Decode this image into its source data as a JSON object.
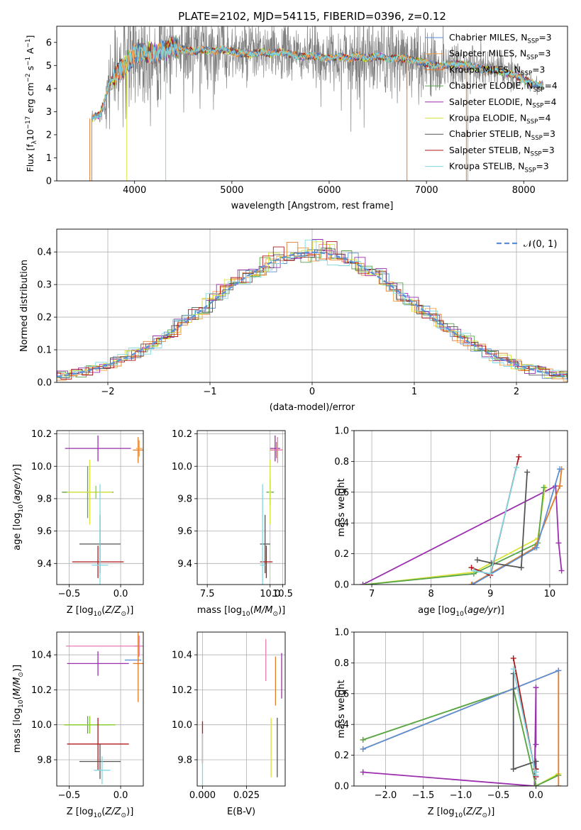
{
  "colors": {
    "Chabrier MILES": "#5b8fd6",
    "Salpeter MILES": "#f4a04a",
    "Kroupa MILES": "#e07b2a",
    "Chabrier ELODIE": "#56a44a",
    "Salpeter ELODIE": "#9b2fae",
    "Kroupa ELODIE": "#d9e33a",
    "Chabrier STELIB": "#555555",
    "Salpeter STELIB": "#b01818",
    "Kroupa STELIB": "#7fd8e3",
    "pink": "#e87ab0",
    "lime": "#8bd12b",
    "grid": "#b0b0b0",
    "data_grey": "#808080",
    "normal": "#5b8fd6"
  },
  "chart_data": [
    {
      "id": "spectrum",
      "type": "line",
      "title": "PLATE=2102, MJD=54115, FIBERID=0396, z=0.12",
      "xlabel": "wavelength [Angstrom, rest frame]",
      "ylabel": "Flux [f_λ 10^-17 erg cm^-2 s^-1 A^-1]",
      "xlim": [
        3200,
        8450
      ],
      "ylim": [
        0,
        6.7
      ],
      "xticks": [
        "4000",
        "5000",
        "6000",
        "7000",
        "8000"
      ],
      "yticks": [
        "0",
        "1",
        "2",
        "3",
        "4",
        "5",
        "6"
      ],
      "grid": false,
      "legend_position": "right",
      "legend": [
        {
          "base": "Chabrier MILES, N",
          "sub": "SSP",
          "suffix": "=3",
          "color_key": "Chabrier MILES"
        },
        {
          "base": "Salpeter MILES, N",
          "sub": "SSP",
          "suffix": "=3",
          "color_key": "Salpeter MILES"
        },
        {
          "base": "Kroupa MILES, N",
          "sub": "SSP",
          "suffix": "=3",
          "color_key": "Kroupa MILES"
        },
        {
          "base": "Chabrier ELODIE, N",
          "sub": "SSP",
          "suffix": "=4",
          "color_key": "Chabrier ELODIE"
        },
        {
          "base": "Salpeter ELODIE, N",
          "sub": "SSP",
          "suffix": "=4",
          "color_key": "Salpeter ELODIE"
        },
        {
          "base": "Kroupa ELODIE, N",
          "sub": "SSP",
          "suffix": "=4",
          "color_key": "Kroupa ELODIE"
        },
        {
          "base": "Chabrier STELIB, N",
          "sub": "SSP",
          "suffix": "=3",
          "color_key": "Chabrier STELIB"
        },
        {
          "base": "Salpeter STELIB, N",
          "sub": "SSP",
          "suffix": "=3",
          "color_key": "Salpeter STELIB"
        },
        {
          "base": "Kroupa STELIB, N",
          "sub": "SSP",
          "suffix": "=3",
          "color_key": "Kroupa STELIB"
        }
      ],
      "data_envelope": {
        "x": [
          3550,
          3600,
          3650,
          3700,
          3750,
          3800,
          3850,
          3900,
          3950,
          4000,
          4100,
          4200,
          4300,
          4400,
          4500,
          4600,
          4700,
          4800,
          4900,
          5000,
          5100,
          5200,
          5300,
          5400,
          5500,
          5600,
          5700,
          5800,
          5900,
          6000,
          6100,
          6200,
          6300,
          6400,
          6500,
          6600,
          6700,
          6800,
          6900,
          7000,
          7100,
          7200,
          7300,
          7400,
          7500,
          7600,
          7700,
          7800,
          7900,
          8000,
          8100,
          8200
        ],
        "y": [
          2.7,
          2.8,
          2.9,
          3.6,
          4.3,
          4.6,
          4.8,
          5.0,
          5.2,
          5.5,
          5.6,
          5.5,
          5.6,
          5.8,
          5.7,
          5.6,
          5.7,
          5.6,
          5.7,
          5.6,
          5.5,
          5.5,
          5.6,
          5.5,
          5.6,
          5.5,
          5.4,
          5.4,
          5.4,
          5.3,
          5.4,
          5.3,
          5.4,
          5.3,
          5.4,
          5.3,
          5.3,
          5.3,
          5.2,
          5.1,
          5.0,
          5.0,
          5.1,
          5.0,
          4.9,
          4.8,
          4.8,
          4.7,
          4.6,
          4.4,
          4.2,
          4.1
        ],
        "noise": [
          0.2,
          0.2,
          0.3,
          0.9,
          1.5,
          2.2,
          2.4,
          2.6,
          2.7,
          2.4,
          2.2,
          2.0,
          1.8,
          1.6,
          1.6,
          1.7,
          1.6,
          1.5,
          1.4,
          1.1,
          1.2,
          1.3,
          1.2,
          1.2,
          1.1,
          1.2,
          1.0,
          1.1,
          1.2,
          1.1,
          1.3,
          1.6,
          1.9,
          1.6,
          1.5,
          1.8,
          1.6,
          1.4,
          1.4,
          1.3,
          1.2,
          1.1,
          1.0,
          1.0,
          0.9,
          0.9,
          0.8,
          0.7,
          0.6,
          0.4,
          0.3,
          0.3
        ]
      }
    },
    {
      "id": "residuals",
      "type": "line",
      "xlabel": "(data-model)/error",
      "ylabel": "Normed distribution",
      "xlim": [
        -2.5,
        2.5
      ],
      "ylim": [
        0,
        0.47
      ],
      "xticks": [
        "−2",
        "−1",
        "0",
        "1",
        "2"
      ],
      "yticks": [
        "0.0",
        "0.1",
        "0.2",
        "0.3",
        "0.4"
      ],
      "grid": true,
      "legend_position": "top-right",
      "legend": [
        "𝒩(0, 1)"
      ],
      "series_color_keys": [
        "Chabrier MILES",
        "Salpeter MILES",
        "Kroupa MILES",
        "Chabrier ELODIE",
        "Salpeter ELODIE",
        "Kroupa ELODIE",
        "Chabrier STELIB",
        "Salpeter STELIB",
        "Kroupa STELIB"
      ]
    },
    {
      "id": "age_vs_Z",
      "type": "scatter",
      "xlabel": "Z [log10(Z/Z☉)]",
      "ylabel": "age  [log10(age/yr)]",
      "xlim": [
        -0.62,
        0.22
      ],
      "ylim": [
        9.27,
        10.22
      ],
      "xticks": [
        "−0.5",
        "0.0"
      ],
      "yticks": [
        "9.4",
        "9.6",
        "9.8",
        "10.0",
        "10.2"
      ],
      "grid": true,
      "points": [
        {
          "x": -0.22,
          "y": 10.11,
          "xerr": 0.32,
          "yerr": 0.08,
          "color_key": "Salpeter ELODIE"
        },
        {
          "x": 0.17,
          "y": 10.1,
          "xerr": 0.05,
          "yerr": 0.08,
          "color_key": "Kroupa MILES"
        },
        {
          "x": 0.18,
          "y": 10.11,
          "xerr": 0.03,
          "yerr": 0.05,
          "color_key": "Salpeter MILES"
        },
        {
          "x": -0.32,
          "y": 9.84,
          "xerr": 0.25,
          "yerr": 0.16,
          "color_key": "Chabrier ELODIE"
        },
        {
          "x": -0.3,
          "y": 9.84,
          "xerr": 0.22,
          "yerr": 0.2,
          "color_key": "Kroupa ELODIE"
        },
        {
          "x": -0.24,
          "y": 9.84,
          "xerr": 0.0,
          "yerr": 0.04,
          "color_key": "lime"
        },
        {
          "x": -0.2,
          "y": 9.52,
          "xerr": 0.2,
          "yerr": 0.18,
          "color_key": "Chabrier STELIB"
        },
        {
          "x": -0.22,
          "y": 9.41,
          "xerr": 0.25,
          "yerr": 0.1,
          "color_key": "Salpeter STELIB"
        },
        {
          "x": -0.2,
          "y": 9.39,
          "xerr": 0.08,
          "yerr": 0.5,
          "color_key": "Kroupa STELIB"
        }
      ]
    },
    {
      "id": "age_vs_mass",
      "type": "scatter",
      "xlabel": "mass [log10(M/M☉)]",
      "ylabel": "",
      "xlim": [
        7.1,
        10.6
      ],
      "ylim": [
        9.27,
        10.22
      ],
      "xticks": [
        "7.5",
        "10.0",
        "10.5"
      ],
      "yticks": [
        "9.4",
        "9.6",
        "9.8",
        "10.0",
        "10.2"
      ],
      "grid": true,
      "points": [
        {
          "x": 10.0,
          "y": 9.84,
          "xerr": 0.15,
          "yerr": 0.08,
          "color_key": "Chabrier ELODIE"
        },
        {
          "x": 10.0,
          "y": 9.84,
          "xerr": 0.05,
          "yerr": 0.2,
          "color_key": "Kroupa ELODIE"
        },
        {
          "x": 9.8,
          "y": 9.52,
          "xerr": 0.2,
          "yerr": 0.18,
          "color_key": "Chabrier STELIB"
        },
        {
          "x": 9.85,
          "y": 9.41,
          "xerr": 0.25,
          "yerr": 0.1,
          "color_key": "Salpeter STELIB"
        },
        {
          "x": 9.7,
          "y": 9.39,
          "xerr": 0.1,
          "yerr": 0.5,
          "color_key": "Kroupa STELIB"
        },
        {
          "x": 10.2,
          "y": 10.11,
          "xerr": 0.2,
          "yerr": 0.08,
          "color_key": "Salpeter ELODIE"
        },
        {
          "x": 10.25,
          "y": 10.1,
          "xerr": 0.25,
          "yerr": 0.05,
          "color_key": "Kroupa MILES"
        },
        {
          "x": 10.3,
          "y": 10.1,
          "xerr": 0.2,
          "yerr": 0.08,
          "color_key": "pink"
        }
      ]
    },
    {
      "id": "mass_weight_vs_age",
      "type": "line",
      "xlabel": "age  [log10(age/yr)]",
      "ylabel": "mass weight",
      "xlim": [
        6.7,
        10.3
      ],
      "ylim": [
        0,
        1.0
      ],
      "xticks": [
        "7",
        "8",
        "9",
        "10"
      ],
      "yticks": [
        "0.0",
        "0.2",
        "0.4",
        "0.6",
        "0.8",
        "1.0"
      ],
      "grid": true,
      "series": [
        {
          "color_key": "Salpeter ELODIE",
          "x": [
            6.85,
            10.1,
            10.15,
            10.2
          ],
          "y": [
            0.0,
            0.64,
            0.27,
            0.09
          ]
        },
        {
          "color_key": "Kroupa ELODIE",
          "x": [
            6.9,
            8.72,
            9.8,
            9.92
          ],
          "y": [
            0.0,
            0.08,
            0.3,
            0.63
          ]
        },
        {
          "color_key": "Chabrier ELODIE",
          "x": [
            6.9,
            8.72,
            9.8,
            9.9
          ],
          "y": [
            0.0,
            0.07,
            0.27,
            0.63
          ]
        },
        {
          "color_key": "Kroupa MILES",
          "x": [
            8.68,
            9.75,
            10.17,
            10.2
          ],
          "y": [
            0.0,
            0.24,
            0.64,
            0.75
          ]
        },
        {
          "color_key": "Chabrier MILES",
          "x": [
            8.7,
            9.78,
            10.17
          ],
          "y": [
            0.0,
            0.24,
            0.75
          ]
        },
        {
          "color_key": "Chabrier STELIB",
          "x": [
            8.78,
            9.02,
            9.52,
            9.62
          ],
          "y": [
            0.16,
            0.14,
            0.11,
            0.73
          ]
        },
        {
          "color_key": "Salpeter STELIB",
          "x": [
            8.68,
            9.0,
            9.48
          ],
          "y": [
            0.11,
            0.06,
            0.83
          ]
        },
        {
          "color_key": "Kroupa STELIB",
          "x": [
            8.72,
            9.0,
            9.44
          ],
          "y": [
            0.09,
            0.07,
            0.76
          ]
        }
      ]
    },
    {
      "id": "mass_vs_Z",
      "type": "scatter",
      "xlabel": "Z [log10(Z/Z☉)]",
      "ylabel": "mass [log10(M/M☉)]",
      "xlim": [
        -0.62,
        0.22
      ],
      "ylim": [
        9.65,
        10.53
      ],
      "xticks": [
        "−0.5",
        "0.0"
      ],
      "yticks": [
        "9.8",
        "10.0",
        "10.2",
        "10.4"
      ],
      "grid": true,
      "points": [
        {
          "x": -0.18,
          "y": 10.45,
          "xerr": 0.35,
          "yerr": 0.0,
          "color_key": "pink"
        },
        {
          "x": 0.18,
          "y": 10.45,
          "xerr": 0.05,
          "yerr": 0.06,
          "color_key": "pink"
        },
        {
          "x": -0.22,
          "y": 10.35,
          "xerr": 0.3,
          "yerr": 0.07,
          "color_key": "Salpeter ELODIE"
        },
        {
          "x": 0.12,
          "y": 10.37,
          "xerr": 0.08,
          "yerr": 0.0,
          "color_key": "Chabrier MILES"
        },
        {
          "x": 0.17,
          "y": 10.35,
          "xerr": 0.05,
          "yerr": 0.22,
          "color_key": "Kroupa MILES"
        },
        {
          "x": -0.32,
          "y": 10.0,
          "xerr": 0.22,
          "yerr": 0.05,
          "color_key": "Chabrier ELODIE"
        },
        {
          "x": -0.3,
          "y": 10.0,
          "xerr": 0.25,
          "yerr": 0.05,
          "color_key": "lime"
        },
        {
          "x": -0.22,
          "y": 9.89,
          "xerr": 0.3,
          "yerr": 0.15,
          "color_key": "Salpeter STELIB"
        },
        {
          "x": -0.2,
          "y": 9.79,
          "xerr": 0.2,
          "yerr": 0.1,
          "color_key": "Chabrier STELIB"
        },
        {
          "x": -0.18,
          "y": 9.74,
          "xerr": 0.08,
          "yerr": 0.08,
          "color_key": "Kroupa STELIB"
        }
      ]
    },
    {
      "id": "mass_vs_EBV",
      "type": "scatter",
      "xlabel": "E(B-V)",
      "ylabel": "",
      "xlim": [
        -0.003,
        0.047
      ],
      "ylim": [
        9.65,
        10.53
      ],
      "xticks": [
        "0.000",
        "0.025"
      ],
      "yticks": [
        "9.8",
        "10.0",
        "10.2",
        "10.4"
      ],
      "grid": true,
      "points": [
        {
          "x": 0.0,
          "y": 9.9,
          "xerr": 0.0,
          "yerr": 0.12,
          "color_key": "Salpeter STELIB"
        },
        {
          "x": 0.0,
          "y": 9.8,
          "xerr": 0.0,
          "yerr": 0.15,
          "color_key": "Kroupa STELIB"
        },
        {
          "x": 0.036,
          "y": 10.37,
          "xerr": 0.0,
          "yerr": 0.12,
          "color_key": "pink"
        },
        {
          "x": 0.039,
          "y": 9.87,
          "xerr": 0.0,
          "yerr": 0.17,
          "color_key": "Kroupa ELODIE"
        },
        {
          "x": 0.0415,
          "y": 10.25,
          "xerr": 0.0,
          "yerr": 0.14,
          "color_key": "Kroupa MILES"
        },
        {
          "x": 0.0425,
          "y": 9.87,
          "xerr": 0.0,
          "yerr": 0.17,
          "color_key": "Chabrier STELIB"
        },
        {
          "x": 0.045,
          "y": 10.28,
          "xerr": 0.0,
          "yerr": 0.13,
          "color_key": "Salpeter ELODIE"
        }
      ]
    },
    {
      "id": "mass_weight_vs_Z",
      "type": "line",
      "xlabel": "Z [log10(Z/Z☉)]",
      "ylabel": "mass weight",
      "xlim": [
        -2.42,
        0.42
      ],
      "ylim": [
        0,
        1.0
      ],
      "xticks": [
        "−2.0",
        "−1.5",
        "−1.0",
        "−0.5",
        "0.0"
      ],
      "yticks": [
        "0.0",
        "0.2",
        "0.4",
        "0.6",
        "0.8",
        "1.0"
      ],
      "grid": true,
      "series": [
        {
          "color_key": "Salpeter ELODIE",
          "x": [
            -2.3,
            -0.02,
            0.0,
            0.0
          ],
          "y": [
            0.09,
            0.0,
            0.64,
            0.27
          ]
        },
        {
          "color_key": "Kroupa ELODIE",
          "x": [
            -2.3,
            -0.3,
            0.0,
            0.3
          ],
          "y": [
            0.3,
            0.63,
            0.0,
            0.08
          ]
        },
        {
          "color_key": "Chabrier ELODIE",
          "x": [
            -2.3,
            -0.3,
            0.0,
            0.3
          ],
          "y": [
            0.3,
            0.63,
            0.0,
            0.07
          ]
        },
        {
          "color_key": "Kroupa MILES",
          "x": [
            -2.3,
            0.3,
            0.3
          ],
          "y": [
            0.24,
            0.75,
            0.0
          ]
        },
        {
          "color_key": "Chabrier MILES",
          "x": [
            -2.3,
            0.3
          ],
          "y": [
            0.24,
            0.75
          ]
        },
        {
          "color_key": "Chabrier STELIB",
          "x": [
            -0.3,
            -0.3,
            0.0,
            0.0
          ],
          "y": [
            0.73,
            0.11,
            0.16,
            0.11
          ]
        },
        {
          "color_key": "Salpeter STELIB",
          "x": [
            -0.3,
            0.0,
            0.0
          ],
          "y": [
            0.83,
            0.06,
            0.11
          ]
        },
        {
          "color_key": "Kroupa STELIB",
          "x": [
            -0.3,
            0.0,
            0.0
          ],
          "y": [
            0.76,
            0.07,
            0.09
          ]
        }
      ]
    }
  ]
}
